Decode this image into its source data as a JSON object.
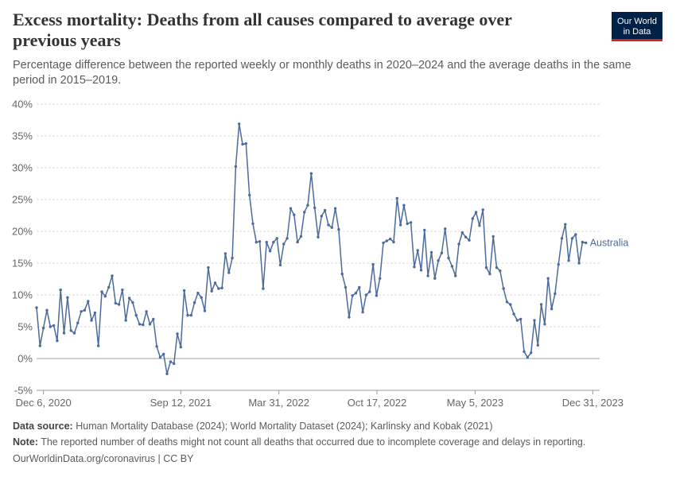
{
  "header": {
    "title": "Excess mortality: Deaths from all causes compared to average over previous years",
    "subtitle": "Percentage difference between the reported weekly or monthly deaths in 2020–2024 and the average deaths in the same period in 2015–2019.",
    "logo_line1": "Our World",
    "logo_line2": "in Data"
  },
  "footer": {
    "source_label": "Data source:",
    "source_text": "Human Mortality Database (2024); World Mortality Dataset (2024); Karlinsky and Kobak (2021)",
    "note_label": "Note:",
    "note_text": "The reported number of deaths might not count all deaths that occurred due to incomplete coverage and delays in reporting.",
    "url_text": "OurWorldinData.org/coronavirus | CC BY"
  },
  "colors": {
    "series": "#4c6a9c",
    "grid": "#dddddd",
    "zero_line": "#a1a1a1"
  },
  "chart_data": {
    "type": "line",
    "title": "Excess mortality: Deaths from all causes compared to average over previous years",
    "ylim": [
      -5,
      40
    ],
    "y_ticks": [
      -5,
      0,
      5,
      10,
      15,
      20,
      25,
      30,
      35,
      40
    ],
    "y_tick_labels": [
      "-5%",
      "0%",
      "5%",
      "10%",
      "15%",
      "20%",
      "25%",
      "30%",
      "35%",
      "40%"
    ],
    "x_range": [
      "2020-11-22",
      "2024-01-14"
    ],
    "x_ticks": [
      "2020-12-06",
      "2021-09-12",
      "2022-03-31",
      "2022-10-17",
      "2023-05-05",
      "2023-12-31"
    ],
    "x_tick_labels": [
      "Dec 6, 2020",
      "Sep 12, 2021",
      "Mar 31, 2022",
      "Oct 17, 2022",
      "May 5, 2023",
      "Dec 31, 2023"
    ],
    "grid": "horizontal dashed",
    "series": [
      {
        "name": "Australia",
        "start_date": "2020-11-22",
        "interval_days": 7,
        "values": [
          8.0,
          2.0,
          4.8,
          7.6,
          5.0,
          5.2,
          2.8,
          10.8,
          4.0,
          9.6,
          4.4,
          4.0,
          5.6,
          7.4,
          7.6,
          9.0,
          6.0,
          7.2,
          2.0,
          10.5,
          9.8,
          11.2,
          13.0,
          8.7,
          8.5,
          10.8,
          6.0,
          9.5,
          8.8,
          6.8,
          5.4,
          5.3,
          7.4,
          5.4,
          6.2,
          1.9,
          0.2,
          0.7,
          -2.4,
          -0.5,
          -0.8,
          3.9,
          1.8,
          10.7,
          6.8,
          6.8,
          8.8,
          10.3,
          9.6,
          7.5,
          14.3,
          10.6,
          11.9,
          11.0,
          11.1,
          16.5,
          13.5,
          15.8,
          30.2,
          36.9,
          33.7,
          33.8,
          25.7,
          21.2,
          18.3,
          18.4,
          11.0,
          18.3,
          16.9,
          18.3,
          18.9,
          14.7,
          18.0,
          18.9,
          23.6,
          22.6,
          18.3,
          19.2,
          23.0,
          24.1,
          29.1,
          23.7,
          19.1,
          22.4,
          23.3,
          21.0,
          20.6,
          23.6,
          20.3,
          13.3,
          11.2,
          6.5,
          9.9,
          10.3,
          11.2,
          7.3,
          10.0,
          10.5,
          14.8,
          9.9,
          12.6,
          18.2,
          18.5,
          18.8,
          18.3,
          25.2,
          21.0,
          24.1,
          21.2,
          21.4,
          14.4,
          17.0,
          13.9,
          20.2,
          13.0,
          16.7,
          12.6,
          15.4,
          16.6,
          20.4,
          15.8,
          14.5,
          13.0,
          18.0,
          19.8,
          19.1,
          18.6,
          22.0,
          23.0,
          20.9,
          23.4,
          14.3,
          13.3,
          19.2,
          14.3,
          13.8,
          11.0,
          8.9,
          8.5,
          7.0,
          6.0,
          6.2,
          1.1,
          0.2,
          0.9,
          6.0,
          2.1,
          8.5,
          5.4,
          12.6,
          7.8,
          10.2,
          14.8,
          18.9,
          21.1,
          15.4,
          18.9,
          19.5,
          15.0,
          18.3,
          18.2
        ]
      }
    ]
  }
}
